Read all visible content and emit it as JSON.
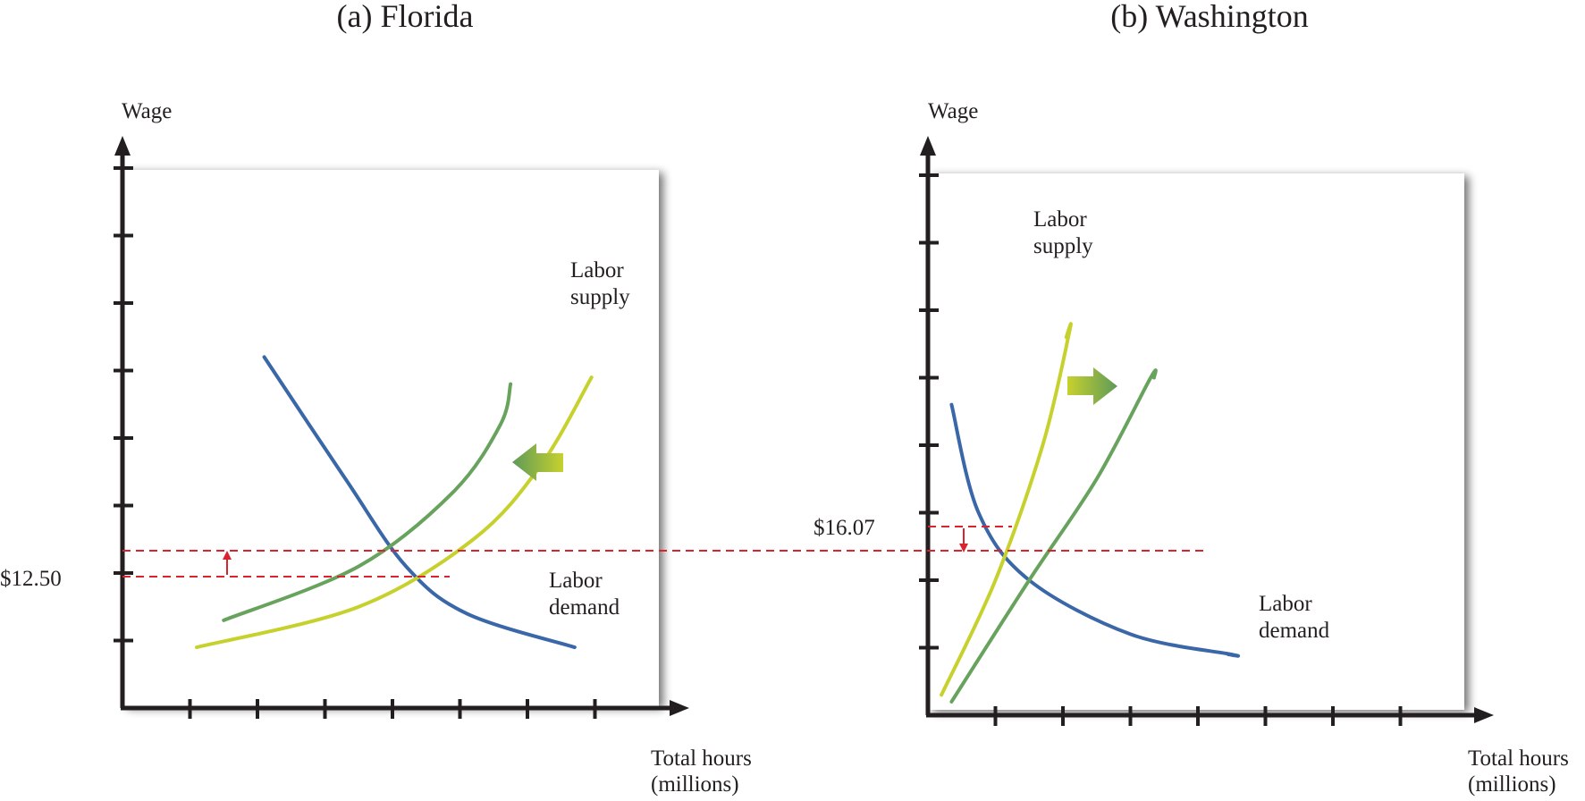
{
  "chart_data": [
    {
      "type": "line",
      "title": "(a) Florida",
      "ylabel": "Wage",
      "xlabel_line1": "Total hours",
      "xlabel_line2": "(millions)",
      "xlim": [
        0,
        8
      ],
      "ylim": [
        0,
        8
      ],
      "grid": false,
      "shift_direction": "left",
      "old_wage_label": "$12.50",
      "series": [
        {
          "name": "Labor demand",
          "label_line1": "Labor",
          "label_line2": "demand",
          "color": "#3a67a8",
          "points": [
            [
              2.1,
              5.2
            ],
            [
              3.3,
              3.4
            ],
            [
              4.2,
              2.1
            ],
            [
              5.1,
              1.4
            ],
            [
              6.7,
              0.9
            ]
          ]
        },
        {
          "name": "Labor supply (original)",
          "label_line1": "Labor",
          "label_line2": "supply",
          "color": "#c7d12d",
          "points": [
            [
              1.1,
              0.9
            ],
            [
              3.5,
              1.5
            ],
            [
              5.2,
              2.5
            ],
            [
              6.2,
              3.6
            ],
            [
              6.95,
              4.9
            ]
          ]
        },
        {
          "name": "Labor supply (shifted)",
          "color": "#68a35e",
          "points": [
            [
              1.5,
              1.3
            ],
            [
              3.5,
              2.1
            ],
            [
              4.9,
              3.2
            ],
            [
              5.6,
              4.2
            ],
            [
              5.75,
              4.8
            ]
          ]
        }
      ],
      "new_equilibrium": {
        "x": 4.3,
        "y": 2.35
      },
      "old_equilibrium": {
        "x": 4.8,
        "y": 2.0
      }
    },
    {
      "type": "line",
      "title": "(b) Washington",
      "ylabel": "Wage",
      "xlabel_line1": "Total hours",
      "xlabel_line2": "(millions)",
      "xlim": [
        0,
        8
      ],
      "ylim": [
        0,
        8
      ],
      "grid": false,
      "shift_direction": "right",
      "old_wage_label": "$16.07",
      "series": [
        {
          "name": "Labor demand",
          "label_line1": "Labor",
          "label_line2": "demand",
          "color": "#3a67a8",
          "points": [
            [
              0.35,
              4.6
            ],
            [
              0.75,
              3.0
            ],
            [
              1.5,
              2.0
            ],
            [
              3.0,
              1.2
            ],
            [
              4.5,
              0.9
            ],
            [
              4.45,
              0.9
            ]
          ]
        },
        {
          "name": "Labor supply (original)",
          "label_line1": "Labor",
          "label_line2": "supply",
          "color": "#c7d12d",
          "points": [
            [
              0.2,
              0.3
            ],
            [
              1.0,
              2.0
            ],
            [
              1.7,
              4.0
            ],
            [
              2.1,
              5.7
            ],
            [
              2.05,
              5.6
            ]
          ]
        },
        {
          "name": "Labor supply (shifted)",
          "color": "#68a35e",
          "points": [
            [
              0.35,
              0.2
            ],
            [
              1.5,
              2.0
            ],
            [
              2.5,
              3.5
            ],
            [
              3.3,
              5.0
            ],
            [
              3.35,
              5.0
            ]
          ]
        }
      ],
      "new_equilibrium": {
        "x": 1.3,
        "y": 2.25
      },
      "old_equilibrium": {
        "x": 1.0,
        "y": 2.6
      }
    }
  ]
}
